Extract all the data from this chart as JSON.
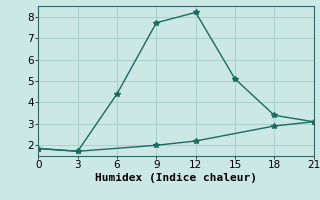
{
  "line1_x": [
    0,
    3,
    6,
    9,
    12,
    15,
    18,
    21
  ],
  "line1_y": [
    1.85,
    1.72,
    4.4,
    7.72,
    8.2,
    5.1,
    3.4,
    3.1
  ],
  "line2_x": [
    0,
    3,
    9,
    12,
    18,
    21
  ],
  "line2_y": [
    1.85,
    1.72,
    2.0,
    2.2,
    2.9,
    3.1
  ],
  "color": "#1a6b60",
  "bg_color": "#cce8e5",
  "grid_color": "#aad0cc",
  "xlabel": "Humidex (Indice chaleur)",
  "xlim": [
    0,
    21
  ],
  "ylim": [
    1.5,
    8.5
  ],
  "xticks": [
    0,
    3,
    6,
    9,
    12,
    15,
    18,
    21
  ],
  "yticks": [
    2,
    3,
    4,
    5,
    6,
    7,
    8
  ],
  "marker": "*",
  "markersize": 4,
  "linewidth": 1.0,
  "xlabel_fontsize": 8,
  "tick_fontsize": 7.5
}
